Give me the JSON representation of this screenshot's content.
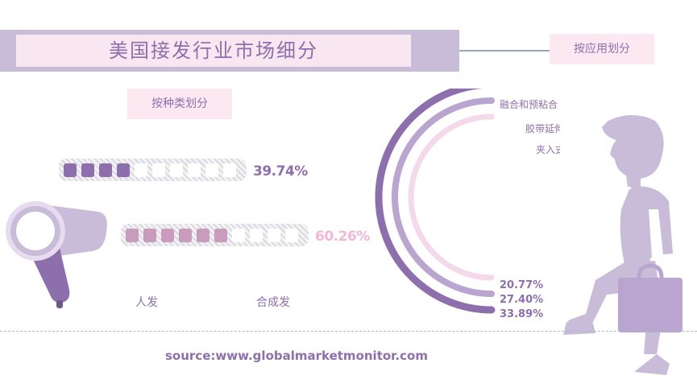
{
  "header": {
    "title": "美国接发行业市场细分"
  },
  "tags": {
    "by_application": "按应用划分",
    "by_type": "按种类划分"
  },
  "colors": {
    "purple_dark": "#8e6fae",
    "purple_mid": "#b9a5cf",
    "pink": "#c99bbd",
    "pink_light": "#f4d9ea",
    "title_bg": "#c9bcd8"
  },
  "chart_data": [
    {
      "type": "bar",
      "categories": [
        "人发",
        "合成发"
      ],
      "values": [
        39.74,
        60.26
      ],
      "value_labels": [
        "39.74%",
        "60.26%"
      ],
      "ylim": [
        0,
        100
      ]
    },
    {
      "type": "pie",
      "categories": [
        "融合和预粘合",
        "胶带延伸",
        "夹入式"
      ],
      "values": [
        33.89,
        27.4,
        20.77
      ],
      "value_labels": [
        "33.89%",
        "27.40%",
        "20.77%"
      ]
    }
  ],
  "footer": {
    "source": "source:www.globalmarketmonitor.com"
  },
  "icons": [
    "hair-dryer-icon",
    "businessman-figure-icon"
  ]
}
